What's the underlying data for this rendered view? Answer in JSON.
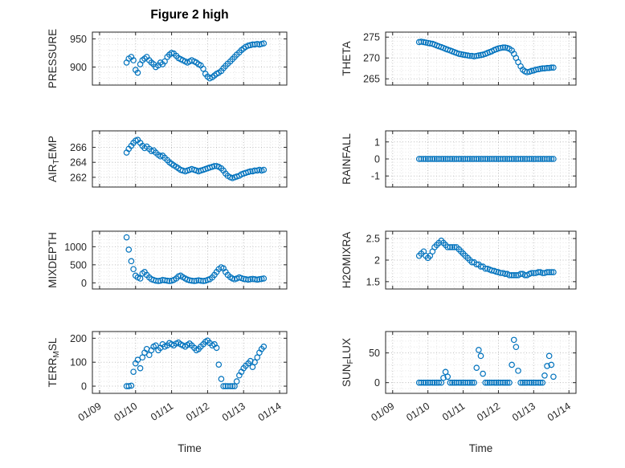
{
  "figure": {
    "title": "Figure 2 high",
    "xlabel": "Time",
    "marker": {
      "shape": "circle-open",
      "color": "#0072BD"
    },
    "grid": "on-dotted"
  },
  "x_axis": {
    "label": "Time",
    "ticks": [
      0,
      1,
      2,
      3,
      4,
      5
    ],
    "tick_labels": [
      "01/09",
      "01/10",
      "01/11",
      "01/12",
      "01/13",
      "01/14"
    ],
    "xlim": [
      -0.2,
      5.2
    ],
    "sample_days": [
      0.75,
      0.81,
      0.88,
      0.94,
      1.0,
      1.06,
      1.13,
      1.19,
      1.25,
      1.31,
      1.38,
      1.44,
      1.5,
      1.56,
      1.63,
      1.69,
      1.75,
      1.81,
      1.88,
      1.94,
      2.0,
      2.06,
      2.13,
      2.19,
      2.25,
      2.31,
      2.38,
      2.44,
      2.5,
      2.56,
      2.63,
      2.69,
      2.75,
      2.81,
      2.88,
      2.94,
      3.0,
      3.06,
      3.13,
      3.19,
      3.25,
      3.31,
      3.38,
      3.44,
      3.5,
      3.56,
      3.63,
      3.69,
      3.75,
      3.81,
      3.88,
      3.94,
      4.0,
      4.06,
      4.13,
      4.19,
      4.25,
      4.31,
      4.38,
      4.44,
      4.5,
      4.56
    ]
  },
  "chart_data": [
    {
      "type": "scatter",
      "name": "PRESSURE",
      "ylabel_parts": [
        {
          "text": "PRESSURE",
          "sub": false
        }
      ],
      "ylim": [
        868,
        962
      ],
      "yticks": [
        900,
        950
      ],
      "ytick_labels": [
        "900",
        "950"
      ],
      "values": [
        908,
        915,
        918,
        912,
        895,
        890,
        905,
        912,
        915,
        918,
        912,
        908,
        905,
        900,
        903,
        908,
        905,
        910,
        918,
        922,
        925,
        924,
        920,
        916,
        914,
        912,
        910,
        908,
        910,
        912,
        910,
        908,
        905,
        903,
        897,
        888,
        883,
        880,
        882,
        885,
        888,
        890,
        893,
        898,
        902,
        906,
        910,
        914,
        918,
        922,
        926,
        930,
        933,
        936,
        938,
        939,
        940,
        940,
        941,
        940,
        941,
        942
      ]
    },
    {
      "type": "scatter",
      "name": "THETA",
      "ylabel_parts": [
        {
          "text": "THETA",
          "sub": false
        }
      ],
      "ylim": [
        263.5,
        276.2
      ],
      "yticks": [
        265,
        270,
        275
      ],
      "ytick_labels": [
        "265",
        "270",
        "275"
      ],
      "values": [
        273.8,
        273.9,
        273.8,
        273.7,
        273.6,
        273.5,
        273.4,
        273.2,
        273.0,
        272.8,
        272.6,
        272.4,
        272.2,
        272.0,
        271.8,
        271.6,
        271.4,
        271.2,
        271.0,
        270.9,
        270.8,
        270.7,
        270.6,
        270.5,
        270.5,
        270.4,
        270.5,
        270.6,
        270.7,
        270.8,
        271.0,
        271.2,
        271.4,
        271.6,
        271.9,
        272.1,
        272.3,
        272.4,
        272.5,
        272.5,
        272.4,
        272.2,
        271.8,
        271.0,
        270.0,
        269.0,
        268.0,
        267.2,
        266.8,
        266.6,
        266.7,
        266.9,
        267.0,
        267.2,
        267.3,
        267.4,
        267.5,
        267.5,
        267.6,
        267.6,
        267.7,
        267.7
      ]
    },
    {
      "type": "scatter",
      "name": "AIR_TEMP",
      "ylabel_parts": [
        {
          "text": "AIR",
          "sub": false
        },
        {
          "text": "T",
          "sub": true
        },
        {
          "text": "EMP",
          "sub": false
        }
      ],
      "ylim": [
        260.7,
        268.2
      ],
      "yticks": [
        262,
        264,
        266
      ],
      "ytick_labels": [
        "262",
        "264",
        "266"
      ],
      "values": [
        265.3,
        265.8,
        266.2,
        266.6,
        266.9,
        267.0,
        266.6,
        266.2,
        265.9,
        266.1,
        265.8,
        265.5,
        265.6,
        265.3,
        265.0,
        264.8,
        264.9,
        264.6,
        264.3,
        264.0,
        263.8,
        263.6,
        263.4,
        263.2,
        263.0,
        262.9,
        262.8,
        262.9,
        263.0,
        263.1,
        263.0,
        262.9,
        262.8,
        262.9,
        263.0,
        263.1,
        263.2,
        263.3,
        263.4,
        263.5,
        263.5,
        263.4,
        263.2,
        262.9,
        262.5,
        262.2,
        262.0,
        261.9,
        262.0,
        262.1,
        262.2,
        262.4,
        262.5,
        262.6,
        262.7,
        262.8,
        262.8,
        262.9,
        262.9,
        263.0,
        262.9,
        263.0
      ]
    },
    {
      "type": "scatter",
      "name": "RAINFALL",
      "ylabel_parts": [
        {
          "text": "RAINFALL",
          "sub": false
        }
      ],
      "ylim": [
        -1.65,
        1.65
      ],
      "yticks": [
        -1,
        0,
        1
      ],
      "ytick_labels": [
        "-1",
        "0",
        "1"
      ],
      "values": [
        0,
        0,
        0,
        0,
        0,
        0,
        0,
        0,
        0,
        0,
        0,
        0,
        0,
        0,
        0,
        0,
        0,
        0,
        0,
        0,
        0,
        0,
        0,
        0,
        0,
        0,
        0,
        0,
        0,
        0,
        0,
        0,
        0,
        0,
        0,
        0,
        0,
        0,
        0,
        0,
        0,
        0,
        0,
        0,
        0,
        0,
        0,
        0,
        0,
        0,
        0,
        0,
        0,
        0,
        0,
        0,
        0,
        0,
        0,
        0,
        0,
        0
      ]
    },
    {
      "type": "scatter",
      "name": "MIXDEPTH",
      "ylabel_parts": [
        {
          "text": "MIXDEPTH",
          "sub": false
        }
      ],
      "ylim": [
        -170,
        1430
      ],
      "yticks": [
        0,
        500,
        1000
      ],
      "ytick_labels": [
        "0",
        "500",
        "1000"
      ],
      "values": [
        1260,
        920,
        600,
        380,
        200,
        150,
        120,
        260,
        300,
        220,
        150,
        100,
        80,
        60,
        50,
        60,
        80,
        70,
        60,
        50,
        60,
        80,
        120,
        180,
        200,
        160,
        120,
        90,
        70,
        60,
        50,
        60,
        70,
        60,
        50,
        60,
        80,
        100,
        150,
        220,
        300,
        380,
        430,
        400,
        300,
        220,
        160,
        120,
        100,
        120,
        150,
        130,
        110,
        100,
        90,
        100,
        110,
        100,
        90,
        100,
        110,
        120
      ]
    },
    {
      "type": "scatter",
      "name": "H2OMIXRA",
      "ylabel_parts": [
        {
          "text": "H2OMIXRA",
          "sub": false
        }
      ],
      "ylim": [
        1.33,
        2.67
      ],
      "yticks": [
        1.5,
        2,
        2.5
      ],
      "ytick_labels": [
        "1.5",
        "2",
        "2.5"
      ],
      "values": [
        2.1,
        2.15,
        2.2,
        2.1,
        2.05,
        2.1,
        2.2,
        2.3,
        2.35,
        2.4,
        2.45,
        2.4,
        2.35,
        2.3,
        2.3,
        2.3,
        2.3,
        2.3,
        2.25,
        2.2,
        2.15,
        2.1,
        2.05,
        2.0,
        1.95,
        1.95,
        1.9,
        1.9,
        1.85,
        1.85,
        1.8,
        1.8,
        1.78,
        1.76,
        1.75,
        1.73,
        1.72,
        1.7,
        1.7,
        1.68,
        1.68,
        1.65,
        1.65,
        1.65,
        1.65,
        1.65,
        1.68,
        1.68,
        1.65,
        1.65,
        1.68,
        1.7,
        1.7,
        1.7,
        1.72,
        1.72,
        1.7,
        1.7,
        1.72,
        1.72,
        1.72,
        1.72
      ]
    },
    {
      "type": "scatter",
      "name": "TERR_MSL",
      "ylabel_parts": [
        {
          "text": "TERR",
          "sub": false
        },
        {
          "text": "M",
          "sub": true
        },
        {
          "text": "SL",
          "sub": false
        }
      ],
      "ylim": [
        -30,
        228
      ],
      "yticks": [
        0,
        100,
        200
      ],
      "ytick_labels": [
        "0",
        "100",
        "200"
      ],
      "values": [
        0,
        0,
        2,
        60,
        95,
        110,
        75,
        120,
        140,
        155,
        130,
        150,
        165,
        170,
        150,
        160,
        175,
        165,
        170,
        180,
        175,
        170,
        178,
        182,
        175,
        170,
        165,
        172,
        178,
        170,
        160,
        150,
        155,
        165,
        175,
        185,
        190,
        180,
        170,
        175,
        160,
        90,
        30,
        0,
        0,
        0,
        0,
        0,
        0,
        20,
        45,
        60,
        75,
        85,
        95,
        105,
        80,
        100,
        120,
        140,
        155,
        165
      ]
    },
    {
      "type": "scatter",
      "name": "SUN_FLUX",
      "ylabel_parts": [
        {
          "text": "SUN",
          "sub": false
        },
        {
          "text": "F",
          "sub": true
        },
        {
          "text": "LUX",
          "sub": false
        }
      ],
      "ylim": [
        -18,
        86
      ],
      "yticks": [
        0,
        50
      ],
      "ytick_labels": [
        "0",
        "50"
      ],
      "values": [
        0,
        0,
        0,
        0,
        0,
        0,
        0,
        0,
        0,
        0,
        0,
        8,
        18,
        10,
        0,
        0,
        0,
        0,
        0,
        0,
        0,
        0,
        0,
        0,
        0,
        0,
        25,
        55,
        45,
        15,
        0,
        0,
        0,
        0,
        0,
        0,
        0,
        0,
        0,
        0,
        0,
        0,
        30,
        72,
        60,
        20,
        0,
        0,
        0,
        0,
        0,
        0,
        0,
        0,
        0,
        0,
        0,
        12,
        28,
        45,
        30,
        10
      ]
    }
  ]
}
